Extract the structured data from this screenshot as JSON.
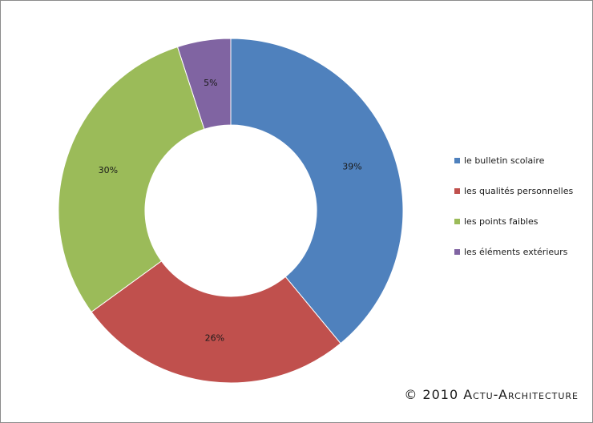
{
  "chart_data": {
    "type": "pie",
    "variant": "donut",
    "categories": [
      "le bulletin scolaire",
      "les qualités personnelles",
      "les points faibles",
      "les éléments extérieurs"
    ],
    "values": [
      39,
      26,
      30,
      5
    ],
    "labels": [
      "39%",
      "26%",
      "30%",
      "5%"
    ],
    "colors": [
      "#4f81bd",
      "#c0504d",
      "#9bbb59",
      "#8064a2"
    ],
    "legend_position": "right"
  },
  "credit": "© 2010 Actu-Architecture"
}
